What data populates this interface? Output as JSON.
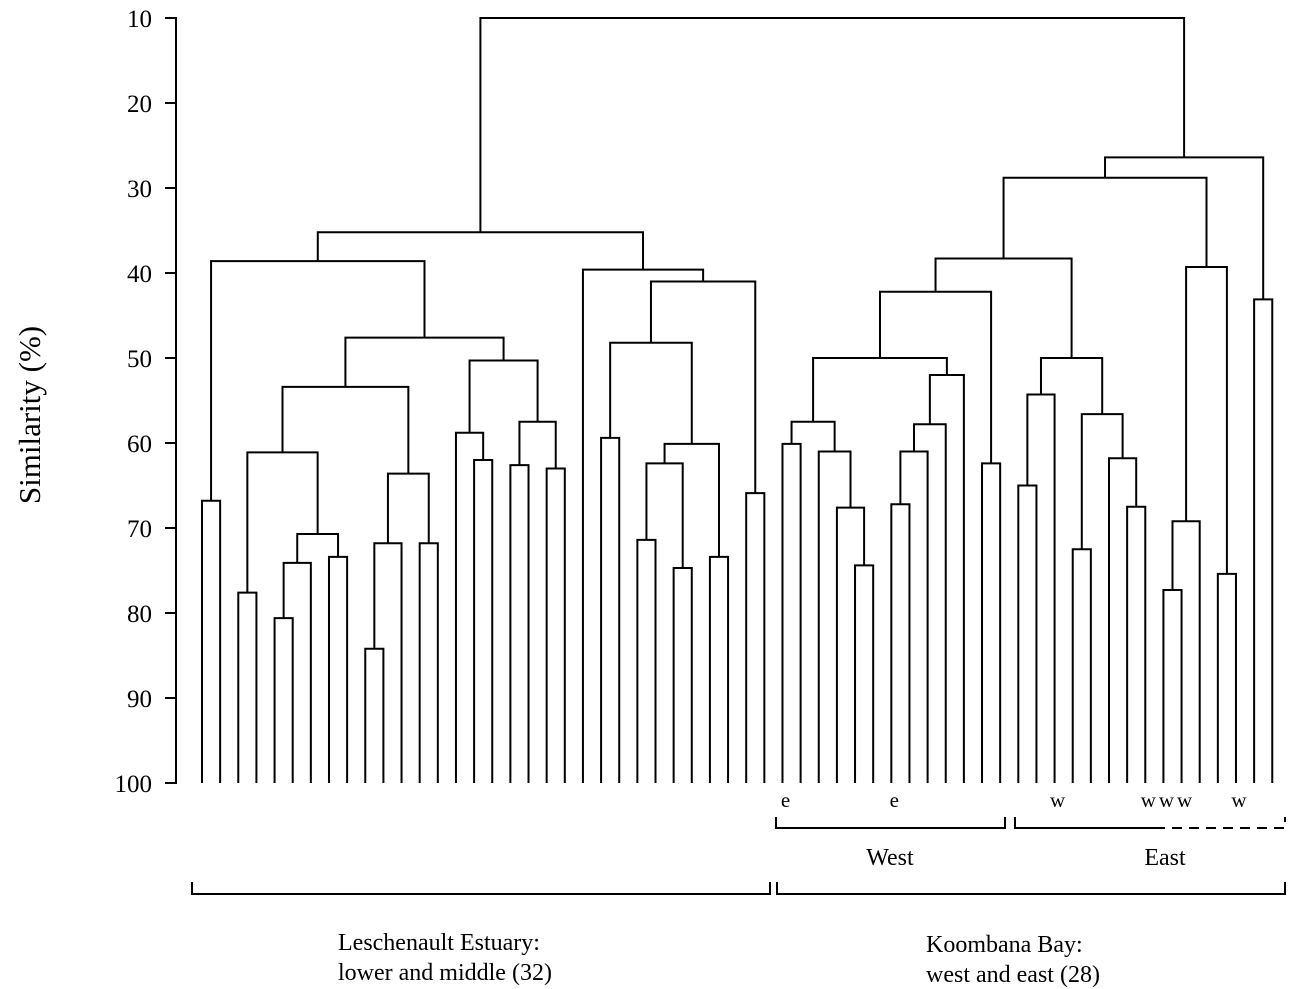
{
  "chart_data": {
    "type": "dendrogram",
    "y_label": "Similarity (%)",
    "ylim": [
      100,
      10
    ],
    "yticks": [
      10,
      20,
      30,
      40,
      50,
      60,
      70,
      80,
      90,
      100
    ],
    "color": "#000000",
    "annotations": [
      "West",
      "East",
      "Leschenault Estuary:",
      "lower and middle (32)",
      "Koombana Bay:",
      "west and east (28)"
    ],
    "tree": {
      "height": 10,
      "children": [
        {
          "height": 35.2,
          "children": [
            {
              "height": 38.6,
              "children": [
                {
                  "height": 66.8,
                  "children": [
                    null,
                    null
                  ]
                },
                {
                  "height": 47.6,
                  "children": [
                    {
                      "height": 53.4,
                      "children": [
                        {
                          "height": 61.1,
                          "children": [
                            {
                              "height": 77.6,
                              "children": [
                                null,
                                null
                              ]
                            },
                            {
                              "height": 70.7,
                              "children": [
                                {
                                  "height": 74.1,
                                  "children": [
                                    {
                                      "height": 80.6,
                                      "children": [
                                        null,
                                        null
                                      ]
                                    },
                                    null
                                  ]
                                },
                                {
                                  "height": 73.4,
                                  "children": [
                                    null,
                                    null
                                  ]
                                }
                              ]
                            }
                          ]
                        },
                        {
                          "height": 63.6,
                          "children": [
                            {
                              "height": 71.8,
                              "children": [
                                {
                                  "height": 84.2,
                                  "children": [
                                    null,
                                    null
                                  ]
                                },
                                null
                              ]
                            },
                            {
                              "height": 71.8,
                              "children": [
                                null,
                                null
                              ]
                            }
                          ]
                        }
                      ]
                    },
                    {
                      "height": 50.3,
                      "children": [
                        {
                          "height": 58.8,
                          "children": [
                            null,
                            {
                              "height": 62,
                              "children": [
                                null,
                                null
                              ]
                            }
                          ]
                        },
                        {
                          "height": 57.5,
                          "children": [
                            {
                              "height": 62.6,
                              "children": [
                                null,
                                null
                              ]
                            },
                            {
                              "height": 63,
                              "children": [
                                null,
                                null
                              ]
                            }
                          ]
                        }
                      ]
                    }
                  ]
                }
              ]
            },
            {
              "height": 39.6,
              "children": [
                null,
                {
                  "height": 41,
                  "children": [
                    {
                      "height": 48.2,
                      "children": [
                        {
                          "height": 59.4,
                          "children": [
                            null,
                            null
                          ]
                        },
                        {
                          "height": 60.1,
                          "children": [
                            {
                              "height": 62.4,
                              "children": [
                                {
                                  "height": 71.4,
                                  "children": [
                                    null,
                                    null
                                  ]
                                },
                                {
                                  "height": 74.7,
                                  "children": [
                                    null,
                                    null
                                  ]
                                }
                              ]
                            },
                            {
                              "height": 73.4,
                              "children": [
                                null,
                                null
                              ]
                            }
                          ]
                        }
                      ]
                    },
                    {
                      "height": 65.9,
                      "children": [
                        null,
                        null
                      ]
                    }
                  ]
                }
              ]
            }
          ]
        },
        {
          "height": 26.4,
          "children": [
            {
              "height": 28.8,
              "children": [
                {
                  "height": 38.3,
                  "children": [
                    {
                      "height": 42.2,
                      "children": [
                        {
                          "height": 50,
                          "children": [
                            {
                              "height": 57.5,
                              "children": [
                                {
                                  "height": 60.1,
                                  "children": [
                                    "e",
                                    null
                                  ]
                                },
                                {
                                  "height": 61,
                                  "children": [
                                    null,
                                    {
                                      "height": 67.6,
                                      "children": [
                                        null,
                                        {
                                          "height": 74.4,
                                          "children": [
                                            null,
                                            null
                                          ]
                                        }
                                      ]
                                    }
                                  ]
                                }
                              ]
                            },
                            {
                              "height": 52,
                              "children": [
                                {
                                  "height": 57.8,
                                  "children": [
                                    {
                                      "height": 61,
                                      "children": [
                                        {
                                          "height": 67.2,
                                          "children": [
                                            "e",
                                            null
                                          ]
                                        },
                                        null
                                      ]
                                    },
                                    null
                                  ]
                                },
                                null
                              ]
                            }
                          ]
                        },
                        {
                          "height": 62.4,
                          "children": [
                            null,
                            null
                          ]
                        }
                      ]
                    },
                    {
                      "height": 50,
                      "children": [
                        {
                          "height": 54.3,
                          "children": [
                            {
                              "height": 65,
                              "children": [
                                null,
                                null
                              ]
                            },
                            "w"
                          ]
                        },
                        {
                          "height": 56.6,
                          "children": [
                            {
                              "height": 72.5,
                              "children": [
                                null,
                                null
                              ]
                            },
                            {
                              "height": 61.8,
                              "children": [
                                null,
                                {
                                  "height": 67.5,
                                  "children": [
                                    null,
                                    "w"
                                  ]
                                }
                              ]
                            }
                          ]
                        }
                      ]
                    }
                  ]
                },
                {
                  "height": 39.3,
                  "children": [
                    {
                      "height": 69.2,
                      "children": [
                        {
                          "height": 77.3,
                          "children": [
                            "w",
                            "w"
                          ]
                        },
                        null
                      ]
                    },
                    {
                      "height": 75.4,
                      "children": [
                        null,
                        "w"
                      ]
                    }
                  ]
                }
              ]
            },
            {
              "height": 43.1,
              "children": [
                null,
                null
              ]
            }
          ]
        }
      ]
    }
  }
}
